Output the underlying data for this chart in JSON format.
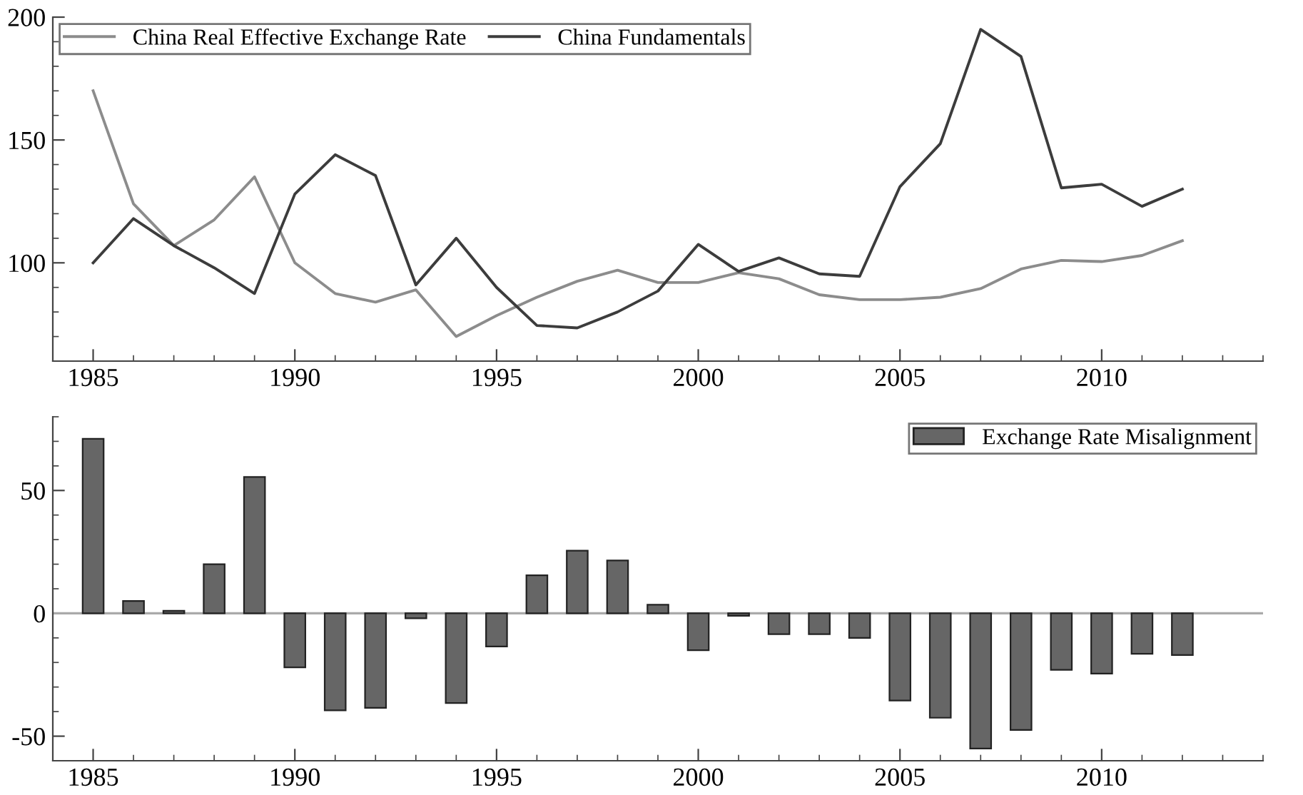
{
  "chart_data": [
    {
      "type": "line",
      "x": [
        1985,
        1986,
        1987,
        1988,
        1989,
        1990,
        1991,
        1992,
        1993,
        1994,
        1995,
        1996,
        1997,
        1998,
        1999,
        2000,
        2001,
        2002,
        2003,
        2004,
        2005,
        2006,
        2007,
        2008,
        2009,
        2010,
        2011,
        2012
      ],
      "series": [
        {
          "name": "China Real Effective Exchange Rate",
          "color": "#8c8c8c",
          "values": [
            170,
            124,
            107,
            117.5,
            135,
            100,
            87.5,
            84,
            89,
            70,
            78.5,
            86,
            92.5,
            97,
            92,
            92,
            96,
            93.5,
            87,
            85,
            85,
            86,
            89.5,
            97.5,
            101,
            100.5,
            103,
            109
          ]
        },
        {
          "name": "China Fundamentals",
          "color": "#3c3c3c",
          "values": [
            100,
            118,
            107,
            98,
            87.5,
            128,
            144,
            135.5,
            91,
            110,
            90,
            74.5,
            73.5,
            80,
            88.5,
            107.5,
            96.5,
            102,
            95.5,
            94.5,
            131,
            148.5,
            195,
            184,
            130.5,
            132,
            123,
            130
          ]
        }
      ],
      "xlim": [
        1984,
        2014
      ],
      "xticks": [
        {
          "value": 1984,
          "label": null
        },
        1985,
        {
          "value": 1986,
          "label": null
        },
        {
          "value": 1987,
          "label": null
        },
        {
          "value": 1988,
          "label": null
        },
        {
          "value": 1989,
          "label": null
        },
        1990,
        {
          "value": 1991,
          "label": null
        },
        {
          "value": 1992,
          "label": null
        },
        {
          "value": 1993,
          "label": null
        },
        {
          "value": 1994,
          "label": null
        },
        1995,
        {
          "value": 1996,
          "label": null
        },
        {
          "value": 1997,
          "label": null
        },
        {
          "value": 1998,
          "label": null
        },
        {
          "value": 1999,
          "label": null
        },
        2000,
        {
          "value": 2001,
          "label": null
        },
        {
          "value": 2002,
          "label": null
        },
        {
          "value": 2003,
          "label": null
        },
        {
          "value": 2004,
          "label": null
        },
        2005,
        {
          "value": 2006,
          "label": null
        },
        {
          "value": 2007,
          "label": null
        },
        {
          "value": 2008,
          "label": null
        },
        {
          "value": 2009,
          "label": null
        },
        2010,
        {
          "value": 2011,
          "label": null
        },
        {
          "value": 2012,
          "label": null
        },
        {
          "value": 2013,
          "label": null
        },
        {
          "value": 2014,
          "label": null
        }
      ],
      "ylim": [
        60,
        200
      ],
      "yticks": [
        {
          "value": 70,
          "label": null
        },
        {
          "value": 80,
          "label": null
        },
        {
          "value": 90,
          "label": null
        },
        100,
        {
          "value": 110,
          "label": null
        },
        {
          "value": 120,
          "label": null
        },
        {
          "value": 130,
          "label": null
        },
        {
          "value": 140,
          "label": null
        },
        150,
        {
          "value": 160,
          "label": null
        },
        {
          "value": 170,
          "label": null
        },
        {
          "value": 180,
          "label": null
        },
        {
          "value": 190,
          "label": null
        },
        200
      ],
      "legend": "top left",
      "grid": false,
      "marker": "none",
      "line_style": "solid"
    },
    {
      "type": "bar",
      "x": [
        1985,
        1986,
        1987,
        1988,
        1989,
        1990,
        1991,
        1992,
        1993,
        1994,
        1995,
        1996,
        1997,
        1998,
        1999,
        2000,
        2001,
        2002,
        2003,
        2004,
        2005,
        2006,
        2007,
        2008,
        2009,
        2010,
        2011,
        2012
      ],
      "series": [
        {
          "name": "Exchange Rate Misalignment",
          "color": "#666666",
          "values": [
            71,
            5,
            1,
            20,
            55.5,
            -22,
            -39.5,
            -38.5,
            -2,
            -36.5,
            -13.5,
            15.5,
            25.5,
            21.5,
            3.5,
            -15,
            -1,
            -8.5,
            -8.5,
            -10,
            -35.5,
            -42.5,
            -55,
            -47.5,
            -23,
            -24.5,
            -16.5,
            -17
          ]
        }
      ],
      "xlim": [
        1984,
        2014
      ],
      "xticks": [
        {
          "value": 1984,
          "label": null
        },
        1985,
        {
          "value": 1986,
          "label": null
        },
        {
          "value": 1987,
          "label": null
        },
        {
          "value": 1988,
          "label": null
        },
        {
          "value": 1989,
          "label": null
        },
        1990,
        {
          "value": 1991,
          "label": null
        },
        {
          "value": 1992,
          "label": null
        },
        {
          "value": 1993,
          "label": null
        },
        {
          "value": 1994,
          "label": null
        },
        1995,
        {
          "value": 1996,
          "label": null
        },
        {
          "value": 1997,
          "label": null
        },
        {
          "value": 1998,
          "label": null
        },
        {
          "value": 1999,
          "label": null
        },
        2000,
        {
          "value": 2001,
          "label": null
        },
        {
          "value": 2002,
          "label": null
        },
        {
          "value": 2003,
          "label": null
        },
        {
          "value": 2004,
          "label": null
        },
        2005,
        {
          "value": 2006,
          "label": null
        },
        {
          "value": 2007,
          "label": null
        },
        {
          "value": 2008,
          "label": null
        },
        {
          "value": 2009,
          "label": null
        },
        2010,
        {
          "value": 2011,
          "label": null
        },
        {
          "value": 2012,
          "label": null
        },
        {
          "value": 2013,
          "label": null
        },
        {
          "value": 2014,
          "label": null
        }
      ],
      "ylim": [
        -60,
        80
      ],
      "yticks": [
        {
          "value": -60,
          "label": null
        },
        -50,
        {
          "value": -40,
          "label": null
        },
        {
          "value": -30,
          "label": null
        },
        {
          "value": -20,
          "label": null
        },
        {
          "value": -10,
          "label": null
        },
        0,
        {
          "value": 10,
          "label": null
        },
        {
          "value": 20,
          "label": null
        },
        {
          "value": 30,
          "label": null
        },
        {
          "value": 40,
          "label": null
        },
        50,
        {
          "value": 60,
          "label": null
        },
        {
          "value": 70,
          "label": null
        },
        {
          "value": 80,
          "label": null
        }
      ],
      "ref_lines": [
        {
          "axis": "y",
          "value": 0,
          "color": "#aaaaaa"
        }
      ],
      "legend": "top right",
      "grid": false
    }
  ]
}
